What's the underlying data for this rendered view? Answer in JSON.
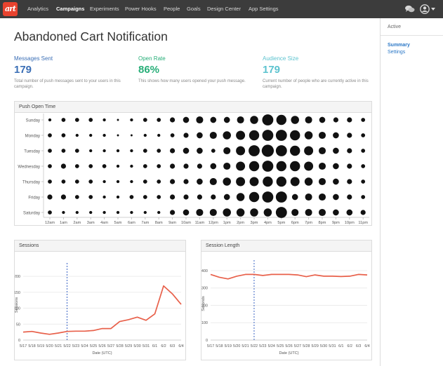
{
  "app": {
    "logo_text": "art"
  },
  "nav": {
    "items": [
      {
        "label": "Analytics",
        "active": false
      },
      {
        "label": "Campaigns",
        "active": true
      },
      {
        "label": "Experiments",
        "active": false
      },
      {
        "label": "Power Hooks",
        "active": false
      },
      {
        "label": "People",
        "active": false
      },
      {
        "label": "Goals",
        "active": false
      },
      {
        "label": "Design Center",
        "active": false
      },
      {
        "label": "App Settings",
        "active": false
      }
    ],
    "right_icons": [
      "chat-icon",
      "user-avatar-icon",
      "caret-down-icon"
    ]
  },
  "page": {
    "title": "Abandoned Cart Notification"
  },
  "sidebar": {
    "status": "Active",
    "links": [
      {
        "label": "Summary",
        "active": true
      },
      {
        "label": "Settings",
        "active": false
      }
    ]
  },
  "stats": [
    {
      "label": "Messages Sent",
      "value": "179",
      "description": "Total number of push messages sent to your users in this campaign.",
      "color": "#3b6fb6"
    },
    {
      "label": "Open Rate",
      "value": "86%",
      "description": "This shows how many users opened your push message.",
      "color": "#27ae78"
    },
    {
      "label": "Audience Size",
      "value": "179",
      "description": "Current number of people who are currently active in this campaign.",
      "color": "#5cc3cf"
    }
  ],
  "colors": {
    "accent_red": "#e8432e",
    "line_red": "#e8604a",
    "marker_blue": "#3a63c4",
    "nav_bg": "#3c3c3c"
  },
  "push_open_time": {
    "title": "Push Open Time",
    "days": [
      "Sunday",
      "Monday",
      "Tuesday",
      "Wednesday",
      "Thursday",
      "Friday",
      "Saturday"
    ],
    "hours": [
      "12am",
      "1am",
      "2am",
      "3am",
      "4am",
      "5am",
      "6am",
      "7am",
      "8am",
      "9am",
      "10am",
      "11am",
      "12pm",
      "1pm",
      "2pm",
      "3pm",
      "4pm",
      "5pm",
      "6pm",
      "7pm",
      "8pm",
      "9pm",
      "10pm",
      "11pm"
    ],
    "intensity": [
      [
        3,
        4,
        4,
        4,
        3,
        2,
        3,
        4,
        4,
        5,
        6,
        7,
        6,
        6,
        7,
        8,
        11,
        10,
        8,
        7,
        6,
        5,
        5,
        4
      ],
      [
        4,
        4,
        3,
        3,
        3,
        2,
        2,
        3,
        3,
        4,
        5,
        6,
        7,
        8,
        9,
        10,
        11,
        11,
        10,
        8,
        7,
        6,
        5,
        4
      ],
      [
        4,
        4,
        4,
        3,
        3,
        3,
        3,
        4,
        4,
        5,
        6,
        6,
        4,
        7,
        9,
        11,
        12,
        11,
        10,
        9,
        7,
        6,
        5,
        4
      ],
      [
        4,
        5,
        4,
        4,
        4,
        3,
        3,
        4,
        4,
        5,
        5,
        5,
        6,
        7,
        9,
        10,
        11,
        10,
        10,
        9,
        7,
        6,
        5,
        4
      ],
      [
        4,
        4,
        4,
        4,
        3,
        3,
        3,
        4,
        4,
        5,
        5,
        6,
        7,
        8,
        9,
        9,
        10,
        10,
        9,
        8,
        7,
        6,
        5,
        4
      ],
      [
        5,
        5,
        4,
        4,
        3,
        3,
        4,
        4,
        4,
        5,
        5,
        5,
        5,
        6,
        8,
        10,
        11,
        11,
        6,
        7,
        7,
        6,
        5,
        4
      ],
      [
        4,
        3,
        3,
        3,
        3,
        3,
        3,
        3,
        3,
        5,
        6,
        7,
        7,
        8,
        8,
        8,
        8,
        11,
        7,
        7,
        7,
        6,
        6,
        5
      ]
    ]
  },
  "chart_data": [
    {
      "type": "line",
      "title": "Sessions",
      "xlabel": "Date (UTC)",
      "ylabel": "Sessions",
      "ylim": [
        0,
        220
      ],
      "yticks": [
        0,
        50,
        100,
        150,
        200
      ],
      "x": [
        "5/17",
        "5/18",
        "5/19",
        "5/20",
        "5/21",
        "5/22",
        "5/23",
        "5/24",
        "5/25",
        "5/26",
        "5/27",
        "5/28",
        "5/29",
        "5/30",
        "5/31",
        "6/1",
        "6/2",
        "6/3",
        "6/4"
      ],
      "xticklabels": [
        "5/17",
        "5/18",
        "5/19",
        "5/20",
        "5/21",
        "5/22",
        "5/23",
        "5/24",
        "5/25",
        "5/26",
        "5/27",
        "5/28",
        "5/29",
        "5/30",
        "5/31",
        "6/1",
        "6/2",
        "6/3",
        "6/4"
      ],
      "series": [
        {
          "values": [
            25,
            27,
            22,
            18,
            22,
            27,
            28,
            28,
            30,
            36,
            36,
            58,
            64,
            72,
            62,
            82,
            170,
            145,
            112
          ]
        }
      ],
      "marker_x": "5/22",
      "grid": true
    },
    {
      "type": "line",
      "title": "Session Length",
      "xlabel": "Date (UTC)",
      "ylabel": "Seconds",
      "ylim": [
        0,
        420
      ],
      "yticks": [
        0,
        100,
        200,
        300,
        400
      ],
      "x": [
        "5/17",
        "5/18",
        "5/19",
        "5/20",
        "5/21",
        "5/22",
        "5/23",
        "5/24",
        "5/25",
        "5/26",
        "5/27",
        "5/28",
        "5/29",
        "5/30",
        "5/31",
        "6/1",
        "6/2",
        "6/3",
        "6/4"
      ],
      "xticklabels": [
        "5/17",
        "5/18",
        "5/19",
        "5/20",
        "5/21",
        "5/22",
        "5/23",
        "5/24",
        "5/25",
        "5/26",
        "5/27",
        "5/28",
        "5/29",
        "5/30",
        "5/31",
        "6/1",
        "6/2",
        "6/3",
        "6/4"
      ],
      "series": [
        {
          "values": [
            378,
            362,
            352,
            368,
            378,
            378,
            372,
            378,
            378,
            378,
            375,
            365,
            375,
            368,
            368,
            366,
            368,
            378,
            375
          ]
        }
      ],
      "marker_x": "5/22",
      "grid": true
    }
  ]
}
